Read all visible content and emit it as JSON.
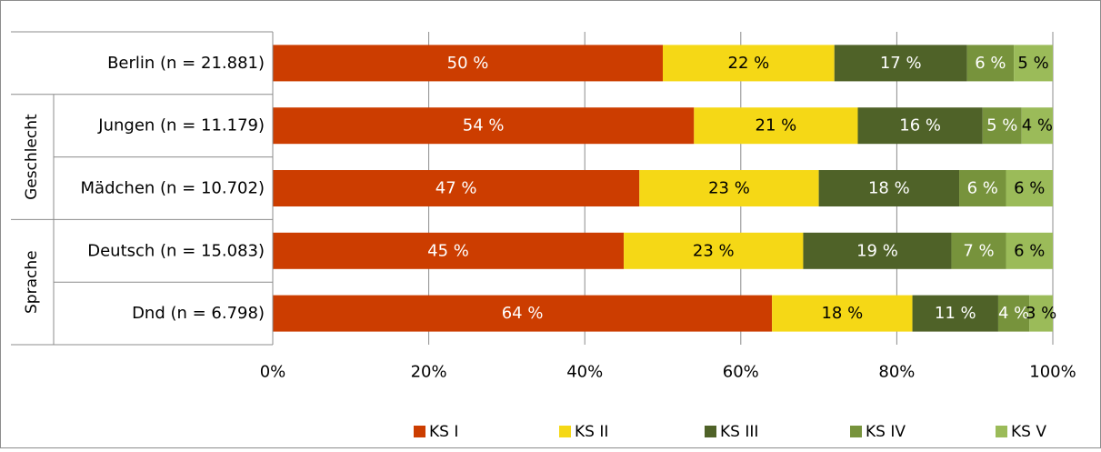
{
  "chart_data": {
    "type": "bar",
    "orientation": "horizontal",
    "stacked": true,
    "categories": [
      "Berlin (n = 21.881)",
      "Jungen (n = 11.179)",
      "Mädchen (n = 10.702)",
      "Deutsch (n = 15.083)",
      "Dnd (n = 6.798)"
    ],
    "groups": [
      {
        "label": "Geschlecht",
        "categories": [
          1,
          2
        ]
      },
      {
        "label": "Sprache",
        "categories": [
          3,
          4
        ]
      }
    ],
    "series": [
      {
        "name": "KS I",
        "color": "#cc3d00",
        "values": [
          50,
          54,
          47,
          45,
          64
        ]
      },
      {
        "name": "KS II",
        "color": "#f5d816",
        "values": [
          22,
          21,
          23,
          23,
          18
        ]
      },
      {
        "name": "KS III",
        "color": "#4f6228",
        "values": [
          17,
          16,
          18,
          19,
          11
        ]
      },
      {
        "name": "KS IV",
        "color": "#77933c",
        "values": [
          6,
          5,
          6,
          7,
          4
        ]
      },
      {
        "name": "KS V",
        "color": "#9bbb59",
        "values": [
          5,
          4,
          6,
          6,
          3
        ]
      }
    ],
    "data_label_suffix": " %",
    "xlim": [
      0,
      100
    ],
    "x_ticks": [
      "0%",
      "20%",
      "40%",
      "60%",
      "80%",
      "100%"
    ],
    "grid": true,
    "legend_position": "bottom"
  }
}
